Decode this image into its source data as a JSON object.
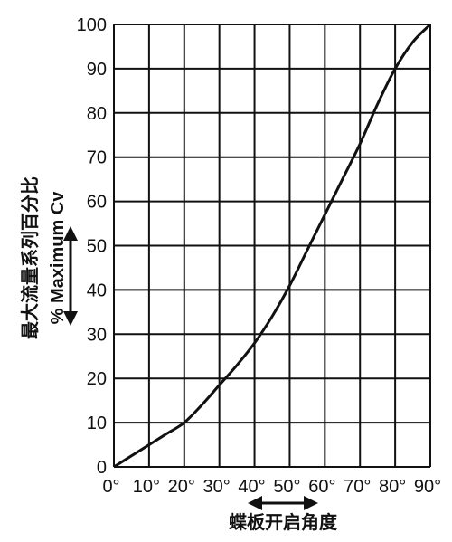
{
  "chart_data": {
    "type": "line",
    "xlabel": "蝶板开启角度",
    "ylabel_cn": "最大流量系列百分比",
    "ylabel_en": "% Maximum Cv",
    "x_tick_labels": [
      "0°",
      "10°",
      "20°",
      "30°",
      "40°",
      "50°",
      "60°",
      "70°",
      "80°",
      "90°"
    ],
    "y_tick_labels": [
      "0",
      "10",
      "20",
      "30",
      "40",
      "50",
      "60",
      "70",
      "80",
      "90",
      "100"
    ],
    "xlim": [
      0,
      90
    ],
    "ylim": [
      0,
      100
    ],
    "grid": true,
    "series": [
      {
        "x": [
          0,
          5,
          10,
          15,
          20,
          25,
          30,
          35,
          40,
          45,
          50,
          55,
          60,
          65,
          70,
          75,
          80,
          85,
          90
        ],
        "y": [
          0,
          2.5,
          5,
          7.5,
          10,
          14,
          18.5,
          23,
          28,
          34,
          41,
          49,
          57,
          65,
          73,
          82,
          90,
          96,
          100
        ],
        "color": "#111111"
      }
    ]
  }
}
